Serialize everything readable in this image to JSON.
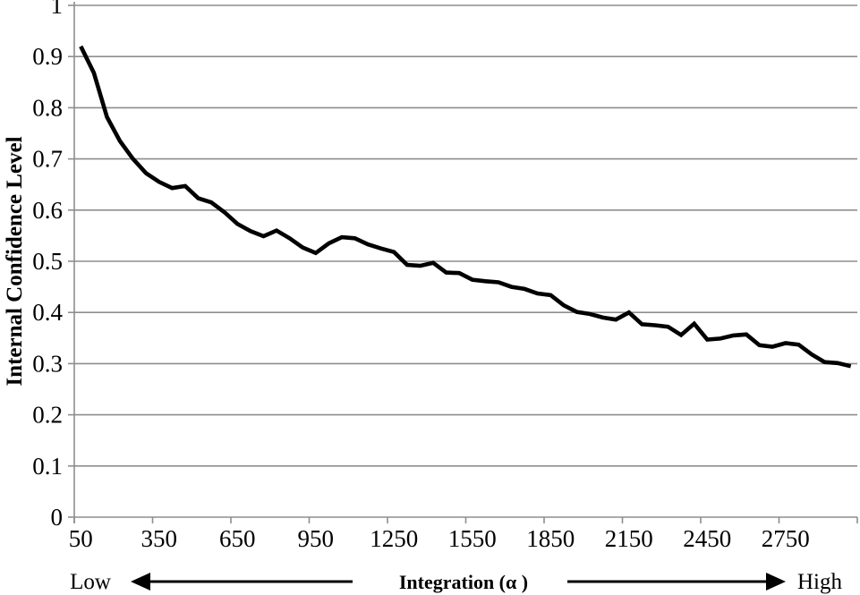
{
  "chart_data": {
    "type": "line",
    "title": "",
    "xlabel": "Integration (α )",
    "ylabel": "Internal Confidence Level",
    "x_axis_low_label": "Low",
    "x_axis_high_label": "High",
    "x_tick_labels": [
      "50",
      "350",
      "650",
      "950",
      "1250",
      "1550",
      "1850",
      "2150",
      "2450",
      "2750"
    ],
    "y_tick_labels": [
      "0",
      "0.1",
      "0.2",
      "0.3",
      "0.4",
      "0.5",
      "0.6",
      "0.7",
      "0.8",
      "0.9",
      "1"
    ],
    "xlim": [
      50,
      3000
    ],
    "ylim": [
      0,
      1
    ],
    "grid": "horizontal",
    "legend": "none",
    "series": [
      {
        "name": "Internal Confidence Level",
        "x": [
          50,
          100,
          150,
          200,
          250,
          300,
          350,
          400,
          450,
          500,
          550,
          600,
          650,
          700,
          750,
          800,
          850,
          900,
          950,
          1000,
          1050,
          1100,
          1150,
          1200,
          1250,
          1300,
          1350,
          1400,
          1450,
          1500,
          1550,
          1600,
          1650,
          1700,
          1750,
          1800,
          1850,
          1900,
          1950,
          2000,
          2050,
          2100,
          2150,
          2200,
          2250,
          2300,
          2350,
          2400,
          2450,
          2500,
          2550,
          2600,
          2650,
          2700,
          2750,
          2800,
          2850,
          2900,
          2950,
          3000
        ],
        "y": [
          0.92,
          0.868,
          0.782,
          0.735,
          0.7,
          0.672,
          0.655,
          0.643,
          0.647,
          0.623,
          0.615,
          0.596,
          0.573,
          0.559,
          0.549,
          0.56,
          0.545,
          0.527,
          0.516,
          0.535,
          0.547,
          0.545,
          0.533,
          0.525,
          0.518,
          0.493,
          0.491,
          0.497,
          0.478,
          0.477,
          0.464,
          0.461,
          0.459,
          0.45,
          0.446,
          0.437,
          0.434,
          0.414,
          0.401,
          0.397,
          0.39,
          0.386,
          0.4,
          0.377,
          0.375,
          0.372,
          0.356,
          0.378,
          0.347,
          0.349,
          0.355,
          0.357,
          0.336,
          0.333,
          0.34,
          0.337,
          0.318,
          0.303,
          0.301,
          0.295
        ]
      }
    ]
  },
  "colors": {
    "line": "#000000",
    "grid": "#8e8e8e",
    "axis": "#8e8e8e",
    "text": "#000000",
    "background": "#ffffff"
  }
}
